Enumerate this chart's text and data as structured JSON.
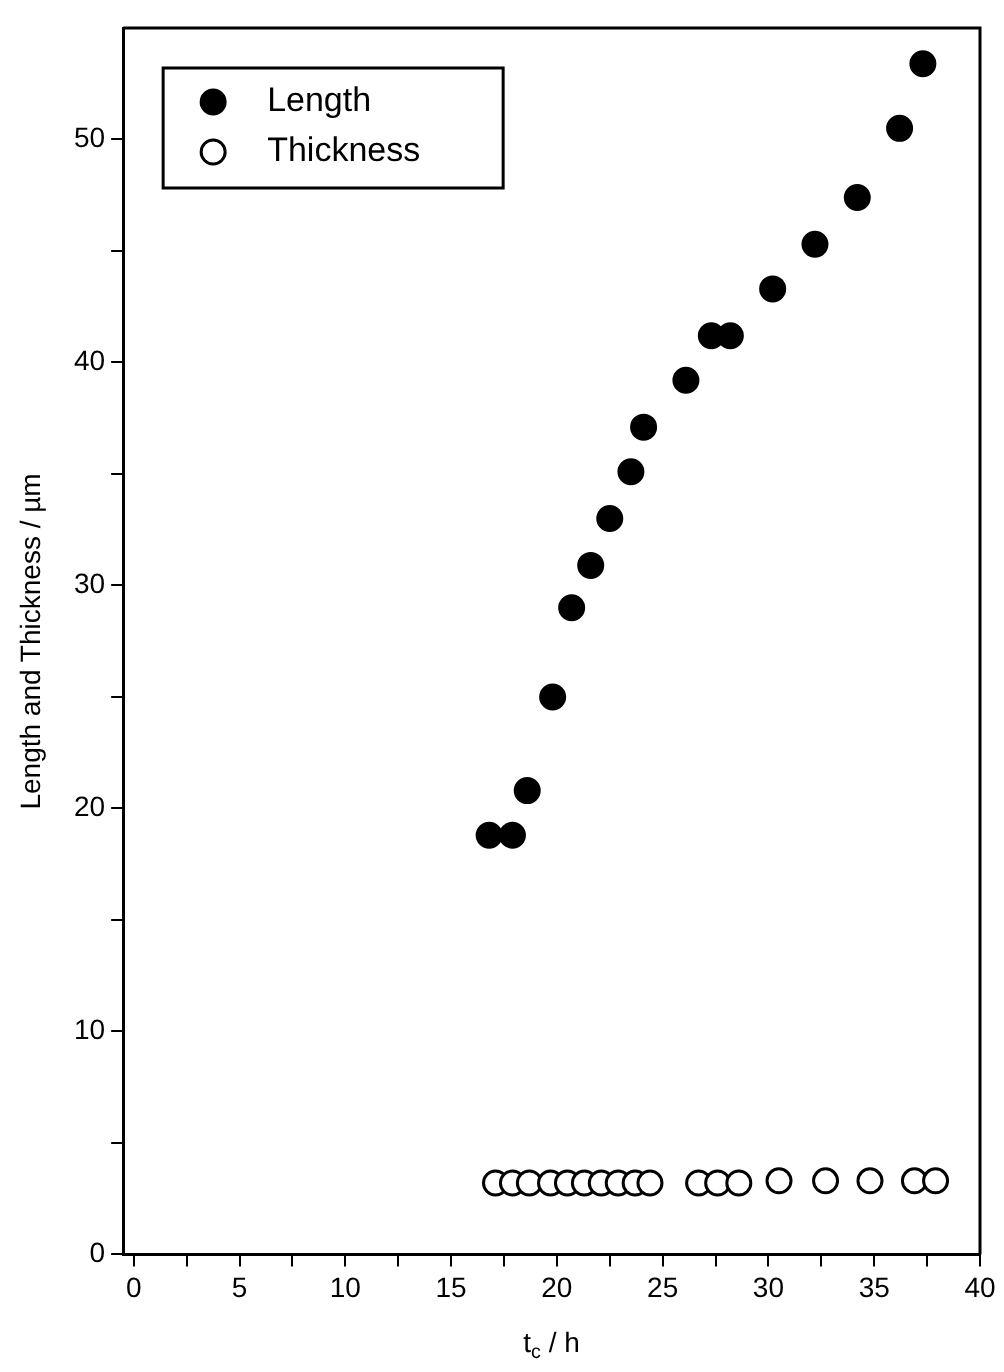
{
  "chart_data": {
    "type": "scatter",
    "xlabel": "t$_{c}$ / h",
    "ylabel": "Length and Thickness / µm",
    "xlim": [
      -0.5,
      40
    ],
    "ylim": [
      0,
      55
    ],
    "xticks": [
      0,
      {
        "value": 2.5,
        "label": null
      },
      5,
      {
        "value": 7.5,
        "label": null
      },
      10,
      {
        "value": 12.5,
        "label": null
      },
      15,
      {
        "value": 17.5,
        "label": null
      },
      20,
      {
        "value": 22.5,
        "label": null
      },
      25,
      {
        "value": 27.5,
        "label": null
      },
      30,
      {
        "value": 32.5,
        "label": null
      },
      35,
      {
        "value": 37.5,
        "label": null
      },
      40
    ],
    "yticks": [
      0,
      {
        "value": 5,
        "label": null
      },
      10,
      {
        "value": 15,
        "label": null
      },
      20,
      {
        "value": 25,
        "label": null
      },
      30,
      {
        "value": 35,
        "label": null
      },
      40,
      {
        "value": 45,
        "label": null
      },
      50
    ],
    "marker": "circle",
    "legend": "top left",
    "grid": false,
    "series": [
      {
        "name": "Length",
        "color": "#000000",
        "x": [
          16.8,
          17.9,
          18.6,
          19.8,
          20.7,
          21.6,
          22.5,
          23.5,
          24.1,
          26.1,
          27.3,
          28.2,
          30.2,
          32.2,
          34.2,
          36.2,
          37.3
        ],
        "values": [
          18.8,
          18.8,
          20.8,
          25.0,
          29.0,
          30.9,
          33.0,
          35.1,
          37.1,
          39.2,
          41.2,
          41.2,
          43.3,
          45.3,
          47.4,
          50.5,
          53.4
        ]
      },
      {
        "name": "Thickness",
        "color": "#000000",
        "x": [
          17.1,
          17.9,
          18.7,
          19.7,
          20.5,
          21.3,
          22.1,
          22.9,
          23.7,
          24.4,
          26.7,
          27.6,
          28.6,
          30.5,
          32.7,
          34.8,
          36.9,
          37.9
        ],
        "values": [
          3.2,
          3.2,
          3.2,
          3.2,
          3.2,
          3.2,
          3.2,
          3.2,
          3.2,
          3.2,
          3.2,
          3.2,
          3.2,
          3.3,
          3.3,
          3.3,
          3.3,
          3.3
        ]
      }
    ]
  }
}
